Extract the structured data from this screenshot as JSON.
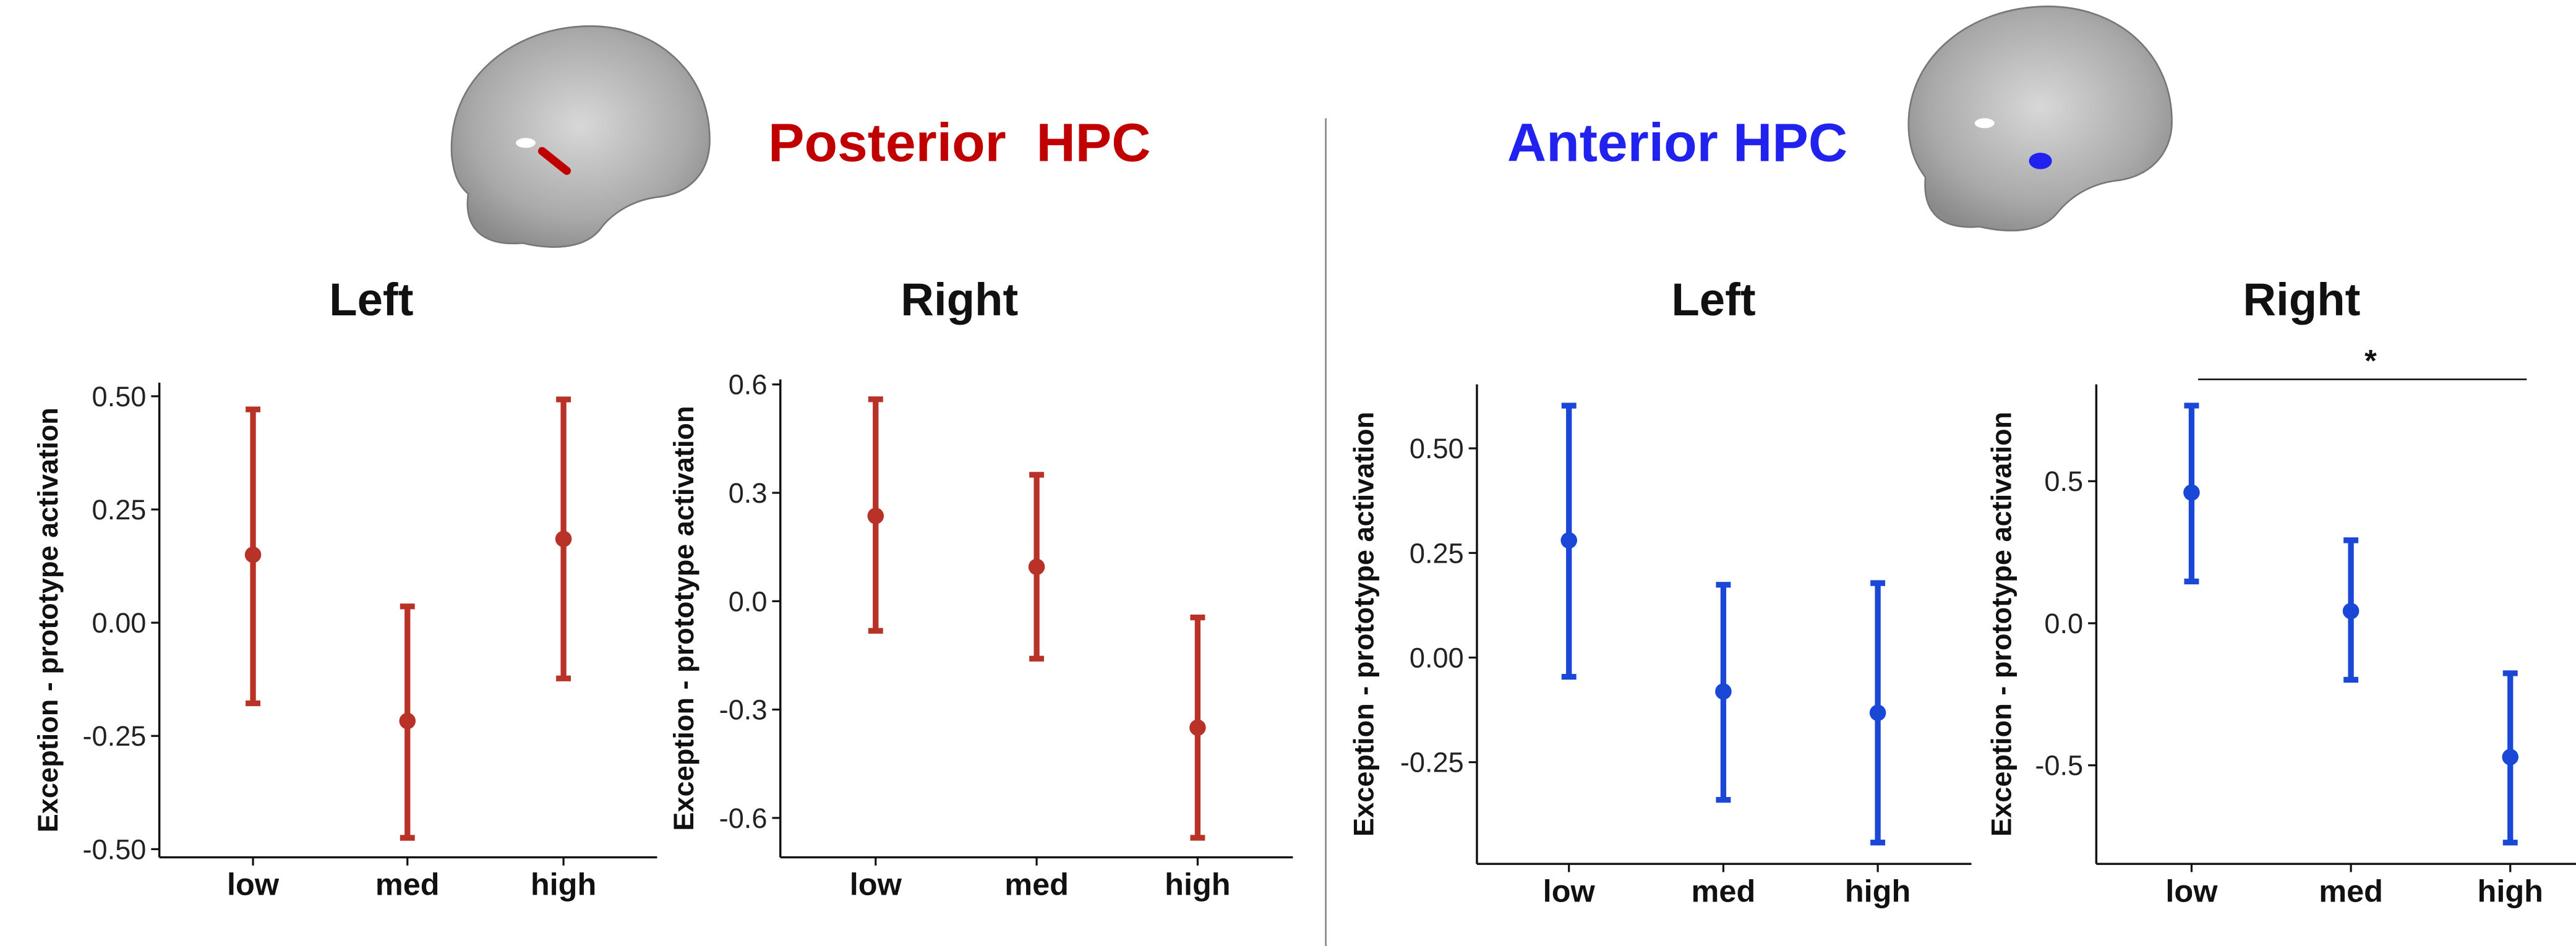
{
  "header": {
    "posterior_title": "Posterior  HPC",
    "anterior_title": "Anterior HPC"
  },
  "chart_data": [
    {
      "type": "errorbar",
      "title": "Left",
      "ylabel": "Exception - prototype activation",
      "categories": [
        "low",
        "med",
        "high"
      ],
      "values": [
        0.15,
        -0.217,
        0.185
      ],
      "lower": [
        -0.178,
        -0.475,
        -0.123
      ],
      "upper": [
        0.471,
        0.036,
        0.493
      ],
      "color": "#b83228",
      "ylim": [
        -0.518,
        0.53
      ],
      "yticks": [
        {
          "value": -0.5,
          "label": "-0.50"
        },
        {
          "value": -0.25,
          "label": "-0.25"
        },
        {
          "value": 0,
          "label": "0.00"
        },
        {
          "value": 0.25,
          "label": "0.25"
        },
        {
          "value": 0.5,
          "label": "0.50"
        }
      ]
    },
    {
      "type": "errorbar",
      "title": "Right",
      "ylabel": "Exception - prototype activation",
      "categories": [
        "low",
        "med",
        "high"
      ],
      "values": [
        0.236,
        0.095,
        -0.35
      ],
      "lower": [
        -0.082,
        -0.159,
        -0.655
      ],
      "upper": [
        0.559,
        0.35,
        -0.045
      ],
      "color": "#b83228",
      "ylim": [
        -0.709,
        0.614
      ],
      "yticks": [
        -0.6,
        -0.3,
        {
          "value": 0,
          "label": "0.0"
        },
        0.3,
        0.6
      ]
    },
    {
      "type": "errorbar",
      "title": "Left",
      "ylabel": "Exception - prototype activation",
      "categories": [
        "low",
        "med",
        "high"
      ],
      "values": [
        0.28,
        -0.081,
        -0.132
      ],
      "lower": [
        -0.046,
        -0.34,
        -0.442
      ],
      "upper": [
        0.602,
        0.174,
        0.178
      ],
      "color": "#1a47d6",
      "ylim": [
        -0.493,
        0.653
      ],
      "yticks": [
        {
          "value": -0.25,
          "label": "-0.25"
        },
        {
          "value": 0,
          "label": "0.00"
        },
        {
          "value": 0.25,
          "label": "0.25"
        },
        {
          "value": 0.5,
          "label": "0.50"
        }
      ]
    },
    {
      "type": "errorbar",
      "title": "Right",
      "ylabel": "Exception - prototype activation",
      "categories": [
        "low",
        "med",
        "high"
      ],
      "values": [
        0.46,
        0.043,
        -0.471
      ],
      "lower": [
        0.147,
        -0.199,
        -0.772
      ],
      "upper": [
        0.766,
        0.292,
        -0.176
      ],
      "color": "#1a47d6",
      "ylim": [
        -0.847,
        0.841
      ],
      "annotation": "*",
      "yticks": [
        -0.5,
        {
          "value": 0,
          "label": "0.0"
        },
        0.5
      ]
    }
  ]
}
